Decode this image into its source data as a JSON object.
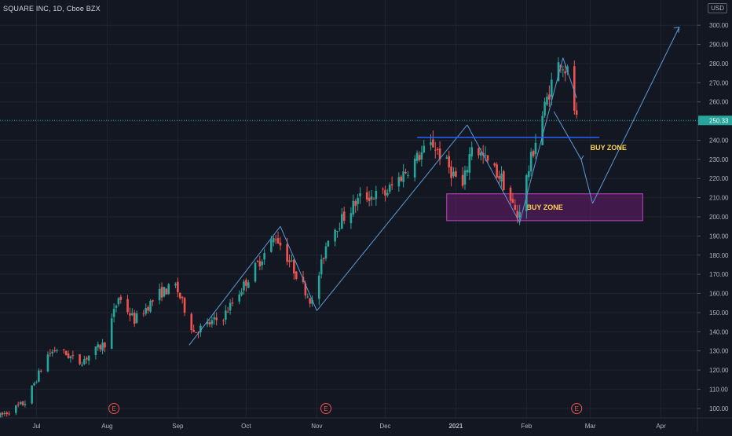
{
  "header": {
    "title": "SQUARE INC, 1D, Cboe BZX",
    "currency": "USD"
  },
  "chart_data": {
    "type": "candlestick",
    "title": "SQUARE INC, 1D, Cboe BZX",
    "currency": "USD",
    "ylim": [
      95,
      305
    ],
    "y_ticks": [
      100,
      110,
      120,
      130,
      140,
      150,
      160,
      170,
      180,
      190,
      200,
      210,
      220,
      230,
      240,
      250,
      260,
      270,
      280,
      290,
      300
    ],
    "y_tick_labels": [
      "100.00",
      "110.00",
      "120.00",
      "130.00",
      "140.00",
      "150.00",
      "160.00",
      "170.00",
      "180.00",
      "190.00",
      "200.00",
      "210.00",
      "220.00",
      "230.00",
      "240.00",
      "250.00",
      "260.00",
      "270.00",
      "280.00",
      "290.00",
      "300.00"
    ],
    "x_range": [
      "2020-06-15",
      "2021-04-17"
    ],
    "x_ticks": [
      {
        "date": "2020-07-01",
        "label": "Jul"
      },
      {
        "date": "2020-08-01",
        "label": "Aug"
      },
      {
        "date": "2020-09-01",
        "label": "Sep"
      },
      {
        "date": "2020-10-01",
        "label": "Oct"
      },
      {
        "date": "2020-11-01",
        "label": "Nov"
      },
      {
        "date": "2020-12-01",
        "label": "Dec"
      },
      {
        "date": "2021-01-01",
        "label": "2021"
      },
      {
        "date": "2021-02-01",
        "label": "Feb"
      },
      {
        "date": "2021-03-01",
        "label": "Mar"
      },
      {
        "date": "2021-04-01",
        "label": "Apr"
      }
    ],
    "last_price": 250.33,
    "last_price_label": "250.33",
    "earnings_markers": [
      {
        "date": "2020-08-04",
        "label": "E"
      },
      {
        "date": "2020-11-05",
        "label": "E"
      },
      {
        "date": "2021-02-23",
        "label": "E"
      }
    ],
    "colors": {
      "up": "#26a69a",
      "down": "#ef5350",
      "drawing": "#5b9bd5",
      "zone_fill": "#6a1b6e",
      "zone_border": "#c146c7",
      "zone_text": "#ffd54f",
      "background": "#131722",
      "grid": "#1f2330"
    },
    "price_path": [
      {
        "date": "2020-06-15",
        "price": 96
      },
      {
        "date": "2020-06-26",
        "price": 103
      },
      {
        "date": "2020-07-06",
        "price": 128
      },
      {
        "date": "2020-07-10",
        "price": 131
      },
      {
        "date": "2020-07-20",
        "price": 124
      },
      {
        "date": "2020-07-31",
        "price": 134
      },
      {
        "date": "2020-08-06",
        "price": 158
      },
      {
        "date": "2020-08-13",
        "price": 146
      },
      {
        "date": "2020-08-24",
        "price": 160
      },
      {
        "date": "2020-08-31",
        "price": 164
      },
      {
        "date": "2020-09-08",
        "price": 140
      },
      {
        "date": "2020-09-21",
        "price": 148
      },
      {
        "date": "2020-10-02",
        "price": 168
      },
      {
        "date": "2020-10-14",
        "price": 190
      },
      {
        "date": "2020-10-30",
        "price": 155
      },
      {
        "date": "2020-11-06",
        "price": 190
      },
      {
        "date": "2020-11-20",
        "price": 210
      },
      {
        "date": "2020-12-01",
        "price": 212
      },
      {
        "date": "2020-12-16",
        "price": 232
      },
      {
        "date": "2020-12-22",
        "price": 238
      },
      {
        "date": "2021-01-04",
        "price": 215
      },
      {
        "date": "2021-01-08",
        "price": 238
      },
      {
        "date": "2021-01-21",
        "price": 220
      },
      {
        "date": "2021-01-28",
        "price": 200
      },
      {
        "date": "2021-02-05",
        "price": 240
      },
      {
        "date": "2021-02-12",
        "price": 270
      },
      {
        "date": "2021-02-16",
        "price": 282
      },
      {
        "date": "2021-02-19",
        "price": 275
      },
      {
        "date": "2021-02-23",
        "price": 250
      }
    ],
    "drawings": {
      "wave_lines": [
        [
          {
            "date": "2020-09-06",
            "price": 133
          },
          {
            "date": "2020-10-16",
            "price": 195
          }
        ],
        [
          {
            "date": "2020-10-16",
            "price": 195
          },
          {
            "date": "2020-11-01",
            "price": 151
          }
        ],
        [
          {
            "date": "2020-11-01",
            "price": 151
          },
          {
            "date": "2021-01-06",
            "price": 248
          }
        ],
        [
          {
            "date": "2021-01-06",
            "price": 248
          },
          {
            "date": "2021-01-29",
            "price": 197
          }
        ],
        [
          {
            "date": "2021-01-29",
            "price": 197
          },
          {
            "date": "2021-02-17",
            "price": 283
          }
        ],
        [
          {
            "date": "2021-02-17",
            "price": 283
          },
          {
            "date": "2021-02-23",
            "price": 262
          }
        ]
      ],
      "projection_lines": [
        [
          {
            "date": "2021-02-13",
            "price": 255
          },
          {
            "date": "2021-02-25",
            "price": 230
          }
        ],
        [
          {
            "date": "2021-02-25",
            "price": 230
          },
          {
            "date": "2021-03-02",
            "price": 207
          }
        ],
        [
          {
            "date": "2021-03-02",
            "price": 207
          },
          {
            "date": "2021-04-09",
            "price": 299
          }
        ]
      ],
      "resistance_line": {
        "from": {
          "date": "2020-12-15",
          "price": 241.5
        },
        "to": {
          "date": "2021-03-05",
          "price": 241.5
        }
      },
      "buy_zone_upper_label": {
        "date": "2021-03-01",
        "price": 236,
        "text": "BUY ZONE"
      },
      "buy_zone_box": {
        "from_date": "2020-12-28",
        "to_date": "2021-03-24",
        "low": 198,
        "high": 212,
        "text": "BUY ZONE"
      }
    }
  }
}
